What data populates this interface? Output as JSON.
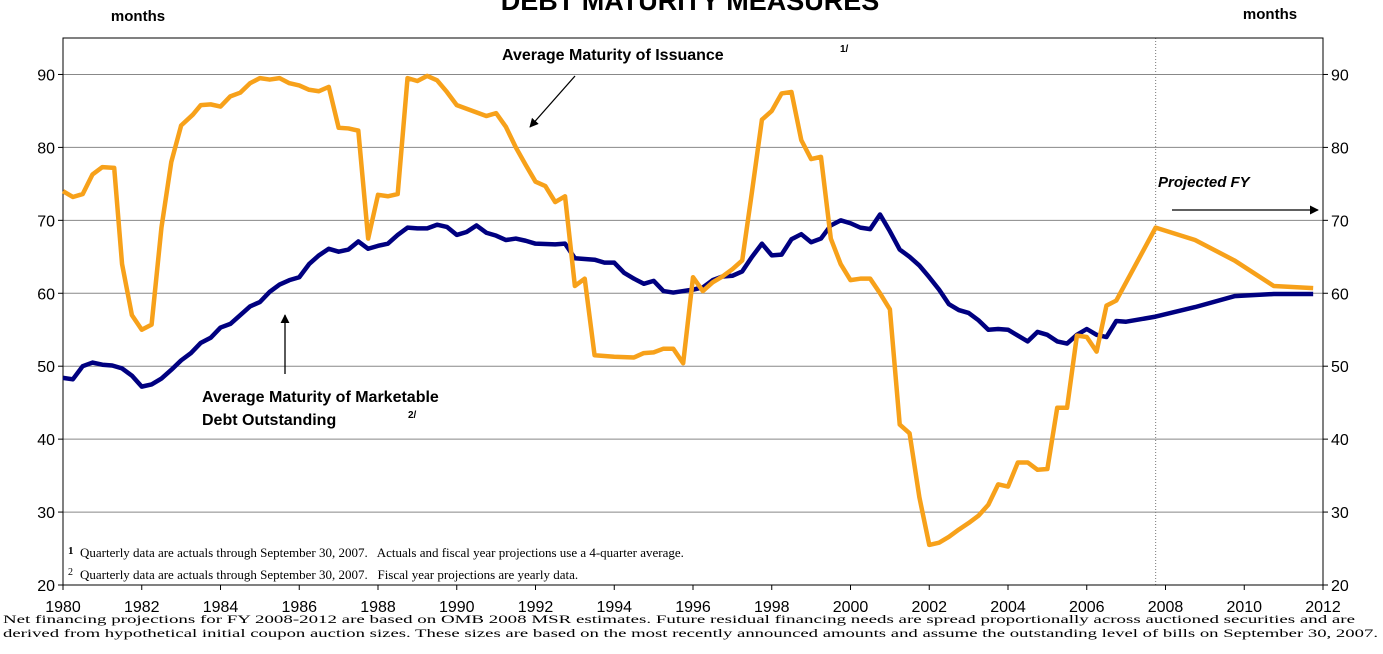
{
  "chart_data": {
    "type": "line",
    "title": "DEBT MATURITY MEASURES",
    "y_label": "months",
    "y2_label": "months",
    "xlim": [
      1980,
      2012
    ],
    "xticks": [
      1980,
      1982,
      1984,
      1986,
      1988,
      1990,
      1992,
      1994,
      1996,
      1998,
      2000,
      2002,
      2004,
      2006,
      2008,
      2010,
      2012
    ],
    "ylim": [
      20,
      95
    ],
    "yticks": [
      20,
      30,
      40,
      50,
      60,
      70,
      80,
      90
    ],
    "y2lim": [
      20,
      95
    ],
    "y2ticks": [
      20,
      30,
      40,
      50,
      60,
      70,
      80,
      90
    ],
    "grid": true,
    "projection_start": 2007.75,
    "series": [
      {
        "color": "#000080",
        "x": [
          1980,
          1980.25,
          1980.5,
          1980.75,
          1981,
          1981.25,
          1981.5,
          1981.75,
          1982,
          1982.25,
          1982.5,
          1982.75,
          1983,
          1983.25,
          1983.5,
          1983.75,
          1984,
          1984.25,
          1984.5,
          1984.75,
          1985,
          1985.25,
          1985.5,
          1985.75,
          1986,
          1986.25,
          1986.5,
          1986.75,
          1987,
          1987.25,
          1987.5,
          1987.75,
          1988,
          1988.25,
          1988.5,
          1988.75,
          1989,
          1989.25,
          1989.5,
          1989.75,
          1990,
          1990.25,
          1990.5,
          1990.75,
          1991,
          1991.25,
          1991.5,
          1991.75,
          1992,
          1992.5,
          1992.75,
          1993,
          1993.5,
          1993.75,
          1994,
          1994.25,
          1994.5,
          1994.75,
          1995,
          1995.25,
          1995.5,
          1995.75,
          1996,
          1996.25,
          1996.5,
          1996.75,
          1997,
          1997.25,
          1997.5,
          1997.75,
          1998,
          1998.25,
          1998.5,
          1998.75,
          1999,
          1999.25,
          1999.5,
          1999.75,
          2000,
          2000.25,
          2000.5,
          2000.75,
          2001,
          2001.25,
          2001.5,
          2001.75,
          2002,
          2002.25,
          2002.5,
          2002.75,
          2003,
          2003.25,
          2003.5,
          2003.75,
          2004,
          2004.25,
          2004.5,
          2004.75,
          2005,
          2005.25,
          2005.5,
          2005.75,
          2006,
          2006.25,
          2006.5,
          2006.75,
          2007,
          2007.75,
          2008.75,
          2009.75,
          2010.75,
          2011.75
        ],
        "values": [
          48.4,
          48.2,
          50,
          50.5,
          50.2,
          50.1,
          49.7,
          48.7,
          47.2,
          47.5,
          48.3,
          49.5,
          50.8,
          51.8,
          53.2,
          53.9,
          55.3,
          55.8,
          57,
          58.2,
          58.8,
          60.2,
          61.2,
          61.8,
          62.2,
          64,
          65.2,
          66.1,
          65.7,
          66,
          67.1,
          66.1,
          66.5,
          66.8,
          68,
          69,
          68.9,
          68.9,
          69.4,
          69.1,
          68,
          68.4,
          69.3,
          68.3,
          67.9,
          67.3,
          67.5,
          67.2,
          66.8,
          66.7,
          66.8,
          64.8,
          64.6,
          64.2,
          64.2,
          62.8,
          62,
          61.3,
          61.7,
          60.3,
          60.1,
          60.3,
          60.5,
          60.8,
          61.8,
          62.3,
          62.4,
          63,
          65,
          66.8,
          65.2,
          65.3,
          67.4,
          68.1,
          67,
          67.5,
          69.3,
          70,
          69.6,
          69,
          68.8,
          70.8,
          68.5,
          66,
          65,
          63.8,
          62.2,
          60.5,
          58.5,
          57.7,
          57.3,
          56.3,
          55,
          55.1,
          55,
          54.2,
          53.4,
          54.7,
          54.3,
          53.4,
          53.1,
          54.3,
          55.1,
          54.3,
          54,
          56.2,
          56.1,
          56.8,
          58.1,
          59.6,
          59.9,
          59.9
        ]
      },
      {
        "color": "#F7A11A",
        "x": [
          1980,
          1980.25,
          1980.5,
          1980.75,
          1981,
          1981.3,
          1981.5,
          1981.75,
          1982,
          1982.25,
          1982.5,
          1982.75,
          1983,
          1983.3,
          1983.5,
          1983.75,
          1984,
          1984.25,
          1984.5,
          1984.75,
          1985,
          1985.25,
          1985.5,
          1985.75,
          1986,
          1986.25,
          1986.5,
          1986.75,
          1987,
          1987.25,
          1987.5,
          1987.75,
          1988,
          1988.25,
          1988.5,
          1988.75,
          1989,
          1989.25,
          1989.5,
          1989.75,
          1990,
          1990.25,
          1990.5,
          1990.75,
          1991,
          1991.25,
          1991.5,
          1991.75,
          1992,
          1992.25,
          1992.5,
          1992.75,
          1993,
          1993.25,
          1993.5,
          1993.75,
          1994,
          1994.5,
          1994.75,
          1995,
          1995.25,
          1995.5,
          1995.75,
          1996,
          1996.25,
          1996.5,
          1996.75,
          1997,
          1997.25,
          1997.5,
          1997.75,
          1998,
          1998.25,
          1998.5,
          1998.75,
          1999,
          1999.25,
          1999.5,
          1999.75,
          2000,
          2000.25,
          2000.5,
          2000.75,
          2001,
          2001.25,
          2001.5,
          2001.75,
          2002,
          2002.25,
          2002.5,
          2002.75,
          2003,
          2003.25,
          2003.5,
          2003.75,
          2004,
          2004.25,
          2004.5,
          2004.75,
          2005,
          2005.25,
          2005.5,
          2005.75,
          2006,
          2006.25,
          2006.5,
          2006.75,
          2007.75,
          2008.75,
          2009.75,
          2010.75,
          2011.75
        ],
        "values": [
          74,
          73.2,
          73.6,
          76.3,
          77.3,
          77.2,
          64,
          57,
          55,
          55.7,
          69,
          78,
          83,
          84.5,
          85.8,
          85.9,
          85.6,
          87,
          87.5,
          88.8,
          89.5,
          89.3,
          89.5,
          88.8,
          88.5,
          87.9,
          87.7,
          88.3,
          82.7,
          82.6,
          82.3,
          67.5,
          73.5,
          73.3,
          73.6,
          89.5,
          89.1,
          89.8,
          89.2,
          87.6,
          85.8,
          85.3,
          84.8,
          84.3,
          84.7,
          82.8,
          80,
          77.6,
          75.3,
          74.7,
          72.5,
          73.3,
          61,
          62,
          51.5,
          51.4,
          51.3,
          51.2,
          51.8,
          51.9,
          52.4,
          52.4,
          50.4,
          62.2,
          60.3,
          61.5,
          62.3,
          63.3,
          64.5,
          74,
          83.8,
          85,
          87.4,
          87.6,
          81,
          78.4,
          78.7,
          67.5,
          64,
          61.8,
          62,
          62,
          60,
          57.8,
          42,
          40.8,
          32,
          25.5,
          25.8,
          26.6,
          27.6,
          28.5,
          29.5,
          31,
          33.8,
          33.5,
          36.8,
          36.8,
          35.8,
          35.9,
          44.3,
          44.3,
          54.2,
          54,
          52,
          58.3,
          59,
          69,
          67.3,
          64.5,
          61,
          60.7
        ]
      }
    ],
    "annotations": [
      {
        "text": "Average Maturity of Issuance",
        "note": "1/"
      },
      {
        "lines": [
          "Average Maturity of Marketable",
          "Debt Outstanding"
        ],
        "note": "2/"
      },
      {
        "text": "Projected FY"
      }
    ],
    "footnotes": [
      {
        "mark": "1",
        "text": "Quarterly data are actuals through September 30, 2007.   Actuals and fiscal year projections use a 4-quarter average."
      },
      {
        "mark": "2",
        "text": "Quarterly data are actuals through September 30, 2007.   Fiscal year projections are yearly data."
      }
    ],
    "note": [
      "Net financing projections for FY 2008-2012 are based on OMB 2008 MSR estimates. Future residual financing needs are spread proportionally across auctioned securities and are",
      "derived from hypothetical initial coupon auction sizes.  These sizes are based on the most recently announced amounts and assume the outstanding level of bills on September 30, 2007."
    ]
  }
}
